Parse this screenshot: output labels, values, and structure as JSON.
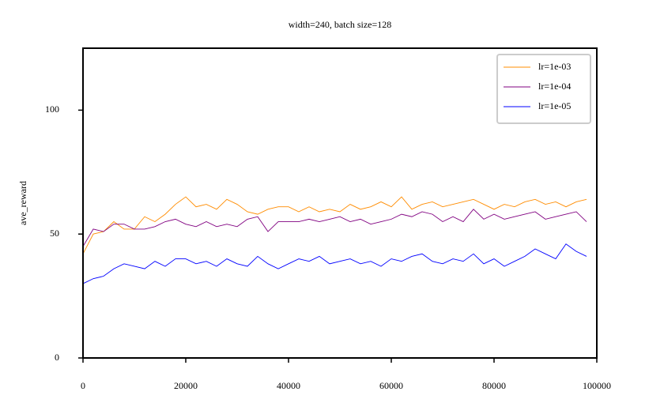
{
  "chart_data": {
    "type": "line",
    "title": "width=240, batch size=128",
    "y_label": "ave_reward",
    "x": [
      0,
      2000,
      4000,
      6000,
      8000,
      10000,
      12000,
      14000,
      16000,
      18000,
      20000,
      22000,
      24000,
      26000,
      28000,
      30000,
      32000,
      34000,
      36000,
      38000,
      40000,
      42000,
      44000,
      46000,
      48000,
      50000,
      52000,
      54000,
      56000,
      58000,
      60000,
      62000,
      64000,
      66000,
      68000,
      70000,
      72000,
      74000,
      76000,
      78000,
      80000,
      82000,
      84000,
      86000,
      88000,
      90000,
      92000,
      94000,
      96000,
      98000
    ],
    "series": [
      {
        "name": "lr=1e-03",
        "color": "#ff8c00",
        "values": [
          42,
          50,
          51,
          55,
          52,
          52,
          57,
          55,
          58,
          62,
          65,
          61,
          62,
          60,
          64,
          62,
          59,
          58,
          60,
          61,
          61,
          59,
          61,
          59,
          60,
          59,
          62,
          60,
          61,
          63,
          61,
          65,
          60,
          62,
          63,
          61,
          62,
          63,
          64,
          62,
          60,
          62,
          61,
          63,
          64,
          62,
          63,
          61,
          63,
          64
        ]
      },
      {
        "name": "lr=1e-04",
        "color": "#800080",
        "values": [
          45,
          52,
          51,
          54,
          54,
          52,
          52,
          53,
          55,
          56,
          54,
          53,
          55,
          53,
          54,
          53,
          56,
          57,
          51,
          55,
          55,
          55,
          56,
          55,
          56,
          57,
          55,
          56,
          54,
          55,
          56,
          58,
          57,
          59,
          58,
          55,
          57,
          55,
          60,
          56,
          58,
          56,
          57,
          58,
          59,
          56,
          57,
          58,
          59,
          55
        ]
      },
      {
        "name": "lr=1e-05",
        "color": "#0000ff",
        "values": [
          30,
          32,
          33,
          36,
          38,
          37,
          36,
          39,
          37,
          40,
          40,
          38,
          39,
          37,
          40,
          38,
          37,
          41,
          38,
          36,
          38,
          40,
          39,
          41,
          38,
          39,
          40,
          38,
          39,
          37,
          40,
          39,
          41,
          42,
          39,
          38,
          40,
          39,
          42,
          38,
          40,
          37,
          39,
          41,
          44,
          42,
          40,
          46,
          43,
          41
        ]
      }
    ],
    "xlim": [
      0,
      100000
    ],
    "xticks": [
      0,
      20000,
      40000,
      60000,
      80000,
      100000
    ],
    "ylim": [
      0,
      125
    ],
    "yticks": [
      0,
      50,
      100
    ],
    "legend": "upper right",
    "grid": false
  }
}
